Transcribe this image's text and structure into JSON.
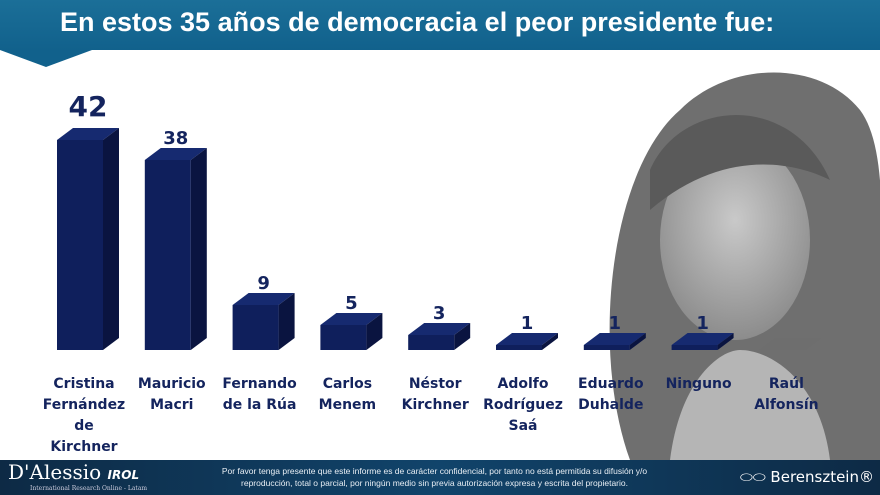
{
  "header": {
    "title": "En estos 35 años de democracia el peor presidente fue:"
  },
  "chart_data": {
    "type": "bar",
    "title": "En estos 35 años de democracia el peor presidente fue:",
    "categories": [
      "Cristina Fernández de Kirchner",
      "Mauricio Macri",
      "Fernando de la Rúa",
      "Carlos Menem",
      "Néstor Kirchner",
      "Adolfo Rodríguez Saá",
      "Eduardo Duhalde",
      "Ninguno",
      "Raúl Alfonsín"
    ],
    "category_lines": [
      [
        "Cristina",
        "Fernández",
        "de",
        "Kirchner"
      ],
      [
        "Mauricio",
        "Macri"
      ],
      [
        "Fernando",
        "de la Rúa"
      ],
      [
        "Carlos",
        "Menem"
      ],
      [
        "Néstor",
        "Kirchner"
      ],
      [
        "Adolfo",
        "Rodríguez",
        "Saá"
      ],
      [
        "Eduardo",
        "Duhalde"
      ],
      [
        "Ninguno"
      ],
      [
        "Raúl",
        "Alfonsín"
      ]
    ],
    "values": [
      42,
      38,
      9,
      5,
      3,
      1,
      1,
      1,
      0
    ],
    "data_labels": [
      "42",
      "38",
      "9",
      "5",
      "3",
      "1",
      "1",
      "1",
      ""
    ],
    "bar_color": "#0f1f5c",
    "zero_bar_color": "#666666",
    "grid": false
  },
  "footer": {
    "logo_left": "D'Alessio",
    "logo_left_suffix": "IROL",
    "logo_left_sub": "International Research Online - Latam",
    "disclaimer_line1": "Por favor tenga presente que este informe es de carácter confidencial, por tanto no está permitida su difusión y/o",
    "disclaimer_line2": "reproducción, total o parcial, por ningún medio sin previa autorización expresa y escrita del propietario.",
    "logo_right": "Berensztein"
  }
}
